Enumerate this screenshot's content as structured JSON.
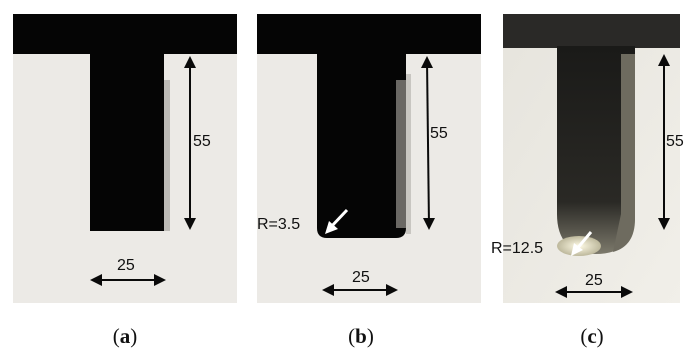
{
  "panels": [
    {
      "id": "a",
      "depth_label": "55",
      "width_label": "25",
      "radius_label": "",
      "caption_open": "(",
      "caption_letter": "a",
      "caption_close": ")"
    },
    {
      "id": "b",
      "depth_label": "55",
      "width_label": "25",
      "radius_label": "R=3.5",
      "caption_open": "(",
      "caption_letter": "b",
      "caption_close": ")"
    },
    {
      "id": "c",
      "depth_label": "55",
      "width_label": "25",
      "radius_label": "R=12.5",
      "caption_open": "(",
      "caption_letter": "c",
      "caption_close": ")"
    }
  ],
  "colors": {
    "specimen": "#ecebe8",
    "notch_dark": "#050505",
    "arrow": "#0a0a0a",
    "pointer": "#ffffff"
  }
}
